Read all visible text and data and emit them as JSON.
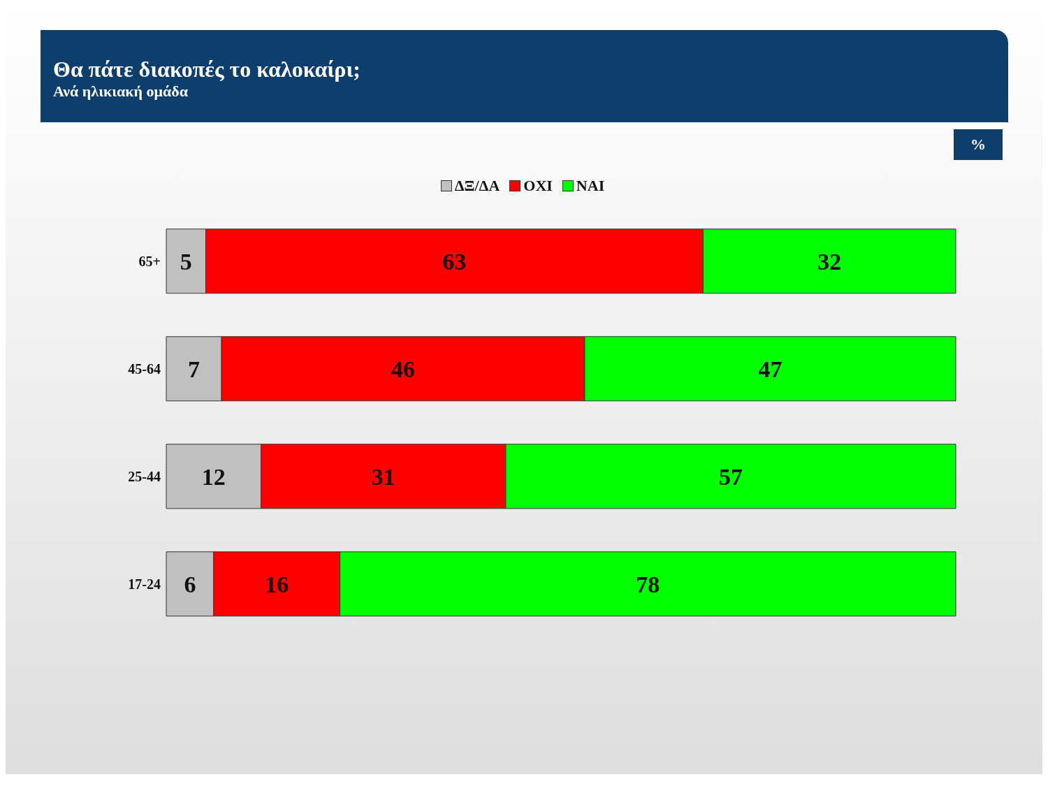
{
  "chart_data": {
    "type": "bar",
    "title": "Θα πάτε διακοπές το καλοκαίρι;",
    "subtitle": "Ανά ηλικιακή ομάδα",
    "annotations": [
      "%"
    ],
    "orientation": "horizontal",
    "stacked": true,
    "data_labels": true,
    "legend": "top",
    "categories": [
      "65+",
      "45-64",
      "25-44",
      "17-24"
    ],
    "series": [
      {
        "name": "ΔΞ/ΔΑ",
        "color": "#c0c0c0",
        "values": [
          5,
          7,
          12,
          6
        ]
      },
      {
        "name": "ΟΧΙ",
        "color": "#ff0000",
        "values": [
          63,
          46,
          31,
          16
        ]
      },
      {
        "name": "ΝΑΙ",
        "color": "#00ff00",
        "values": [
          32,
          47,
          57,
          78
        ]
      }
    ]
  }
}
